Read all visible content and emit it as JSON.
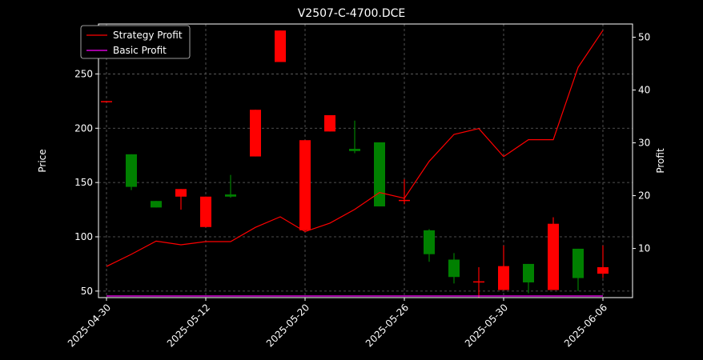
{
  "chart_data": {
    "type": "candlestick",
    "title": "V2507-C-4700.DCE",
    "ylabel_left": "Price",
    "ylabel_right": "Profit",
    "ylim_left": [
      44,
      296
    ],
    "ylim_right": [
      0.7,
      52.5
    ],
    "yticks_left": [
      50,
      100,
      150,
      200,
      250
    ],
    "yticks_right": [
      10,
      20,
      30,
      40,
      50
    ],
    "x_tick_labels": [
      {
        "index": 0,
        "label": "2025-04-30"
      },
      {
        "index": 4,
        "label": "2025-05-12"
      },
      {
        "index": 8,
        "label": "2025-05-20"
      },
      {
        "index": 12,
        "label": "2025-05-26"
      },
      {
        "index": 16,
        "label": "2025-05-30"
      },
      {
        "index": 20,
        "label": "2025-06-06"
      }
    ],
    "grid": true,
    "legend": {
      "position": "top-left",
      "entries": [
        {
          "name": "Strategy Profit",
          "color": "#ff0000"
        },
        {
          "name": "Basic Profit",
          "color": "#ff00ff"
        }
      ]
    },
    "candles": [
      {
        "open": 225,
        "close": 225,
        "high": 225,
        "low": 225,
        "color": "#ff0000"
      },
      {
        "open": 146,
        "close": 176,
        "high": 176,
        "low": 143,
        "color": "#008000"
      },
      {
        "open": 127,
        "close": 133,
        "high": 133,
        "low": 127,
        "color": "#008000"
      },
      {
        "open": 144,
        "close": 137,
        "high": 144,
        "low": 125,
        "color": "#ff0000"
      },
      {
        "open": 137,
        "close": 109,
        "high": 137,
        "low": 109,
        "color": "#ff0000"
      },
      {
        "open": 137,
        "close": 139,
        "high": 157,
        "low": 136,
        "color": "#008000"
      },
      {
        "open": 217,
        "close": 174,
        "high": 217,
        "low": 174,
        "color": "#ff0000"
      },
      {
        "open": 290,
        "close": 261,
        "high": 290,
        "low": 261,
        "color": "#ff0000"
      },
      {
        "open": 189,
        "close": 106,
        "high": 189,
        "low": 106,
        "color": "#ff0000"
      },
      {
        "open": 212,
        "close": 197,
        "high": 212,
        "low": 197,
        "color": "#ff0000"
      },
      {
        "open": 179,
        "close": 181,
        "high": 207,
        "low": 177,
        "color": "#008000"
      },
      {
        "open": 128,
        "close": 187,
        "high": 187,
        "low": 128,
        "color": "#008000"
      },
      {
        "open": 134,
        "close": 134,
        "high": 153,
        "low": 130,
        "color": "#ff0000"
      },
      {
        "open": 84,
        "close": 106,
        "high": 107,
        "low": 77,
        "color": "#008000"
      },
      {
        "open": 63,
        "close": 79,
        "high": 85,
        "low": 57,
        "color": "#008000"
      },
      {
        "open": 59,
        "close": 59,
        "high": 72,
        "low": 44,
        "color": "#ff0000"
      },
      {
        "open": 73,
        "close": 51,
        "high": 92,
        "low": 51,
        "color": "#ff0000"
      },
      {
        "open": 58,
        "close": 75,
        "high": 75,
        "low": 48,
        "color": "#008000"
      },
      {
        "open": 112,
        "close": 51,
        "high": 118,
        "low": 51,
        "color": "#ff0000"
      },
      {
        "open": 62,
        "close": 89,
        "high": 89,
        "low": 50,
        "color": "#008000"
      },
      {
        "open": 72,
        "close": 66,
        "high": 92,
        "low": 62,
        "color": "#ff0000"
      }
    ],
    "series": [
      {
        "name": "Strategy Profit",
        "color": "#ff0000",
        "axis": "right",
        "values": [
          6.6,
          8.9,
          11.4,
          10.7,
          11.3,
          11.3,
          14.0,
          16.0,
          13.2,
          14.8,
          17.4,
          20.6,
          19.5,
          26.5,
          31.6,
          32.7,
          27.4,
          30.6,
          30.6,
          44.3,
          51.3
        ]
      },
      {
        "name": "Basic Profit",
        "color": "#ff00ff",
        "axis": "right",
        "values": [
          1.0,
          1.0,
          1.0,
          1.0,
          1.0,
          1.0,
          1.0,
          1.0,
          1.0,
          1.0,
          1.0,
          1.0,
          1.0,
          1.0,
          1.0,
          1.0,
          1.0,
          1.0,
          1.0,
          1.0,
          1.0
        ]
      }
    ]
  }
}
